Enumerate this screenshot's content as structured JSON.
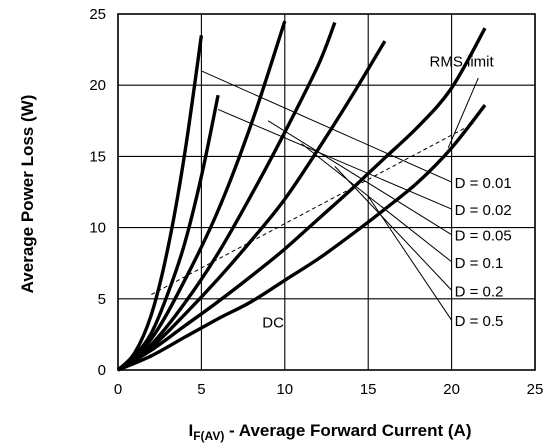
{
  "chart_data": {
    "type": "line",
    "xlabel": {
      "main": "I",
      "sub": "F(AV)",
      "rest": " - Average Forward Current (A)"
    },
    "ylabel": "Average Power Loss (W)",
    "xlim": [
      0,
      25
    ],
    "ylim": [
      0,
      25
    ],
    "x_ticks": [
      "0",
      "5",
      "10",
      "15",
      "20",
      "25"
    ],
    "y_ticks": [
      "0",
      "5",
      "10",
      "15",
      "20",
      "25"
    ],
    "grid": true,
    "colors": {
      "curve": "#000000",
      "grid": "#000000"
    },
    "series": [
      {
        "x": [
          0,
          1,
          2,
          3,
          4,
          5
        ],
        "y": [
          0,
          1.2,
          3.9,
          8.6,
          15.2,
          23.5
        ]
      },
      {
        "x": [
          0,
          1,
          2,
          3,
          4,
          5,
          6
        ],
        "y": [
          0,
          1.0,
          2.6,
          5.4,
          8.9,
          13.6,
          19.3
        ]
      },
      {
        "x": [
          0,
          2,
          4,
          6,
          8,
          10
        ],
        "y": [
          0,
          2.2,
          6.3,
          11.2,
          17.3,
          24.5
        ]
      },
      {
        "x": [
          0,
          2,
          4,
          6,
          8,
          10,
          12,
          13
        ],
        "y": [
          0,
          1.8,
          4.7,
          8.2,
          12.3,
          16.7,
          21.4,
          24.4
        ]
      },
      {
        "x": [
          0,
          2,
          4,
          6,
          8,
          10,
          12,
          14,
          16
        ],
        "y": [
          0,
          1.6,
          3.9,
          6.4,
          9.1,
          12.0,
          15.5,
          19.2,
          23.1
        ]
      },
      {
        "x": [
          0,
          2,
          4,
          6,
          8,
          10,
          12,
          14,
          16,
          18,
          20,
          22
        ],
        "y": [
          0,
          1.4,
          3.1,
          4.8,
          6.6,
          8.5,
          10.6,
          12.7,
          14.9,
          17.1,
          19.8,
          24.0
        ]
      },
      {
        "x": [
          0,
          2,
          4,
          6,
          8,
          10,
          12,
          14,
          16,
          18,
          20,
          22
        ],
        "y": [
          0,
          1.0,
          2.3,
          3.6,
          4.8,
          6.3,
          7.8,
          9.5,
          11.3,
          13.2,
          15.6,
          18.6
        ]
      }
    ],
    "rms_limit_line": {
      "x": [
        2,
        21.3
      ],
      "y": [
        5.3,
        17.3
      ]
    },
    "duty_lines": [
      {
        "label": "D = 0.01",
        "x": [
          5,
          20
        ],
        "y": [
          21.0,
          13.2
        ]
      },
      {
        "label": "D = 0.02",
        "x": [
          6,
          20
        ],
        "y": [
          18.3,
          11.3
        ]
      },
      {
        "label": "D = 0.05",
        "x": [
          9,
          20
        ],
        "y": [
          17.5,
          9.5
        ]
      },
      {
        "label": "D = 0.1",
        "x": [
          11,
          20
        ],
        "y": [
          15.9,
          7.6
        ]
      },
      {
        "label": "D = 0.2",
        "x": [
          13,
          20
        ],
        "y": [
          14.3,
          5.6
        ]
      },
      {
        "label": "D = 0.5",
        "x": [
          15,
          20
        ],
        "y": [
          12.2,
          3.5
        ]
      }
    ],
    "annotations": [
      {
        "text": "RMS limit",
        "x": 20.6,
        "y": 21.3
      },
      {
        "text": "DC",
        "x": 9.3,
        "y": 3.0
      }
    ]
  }
}
